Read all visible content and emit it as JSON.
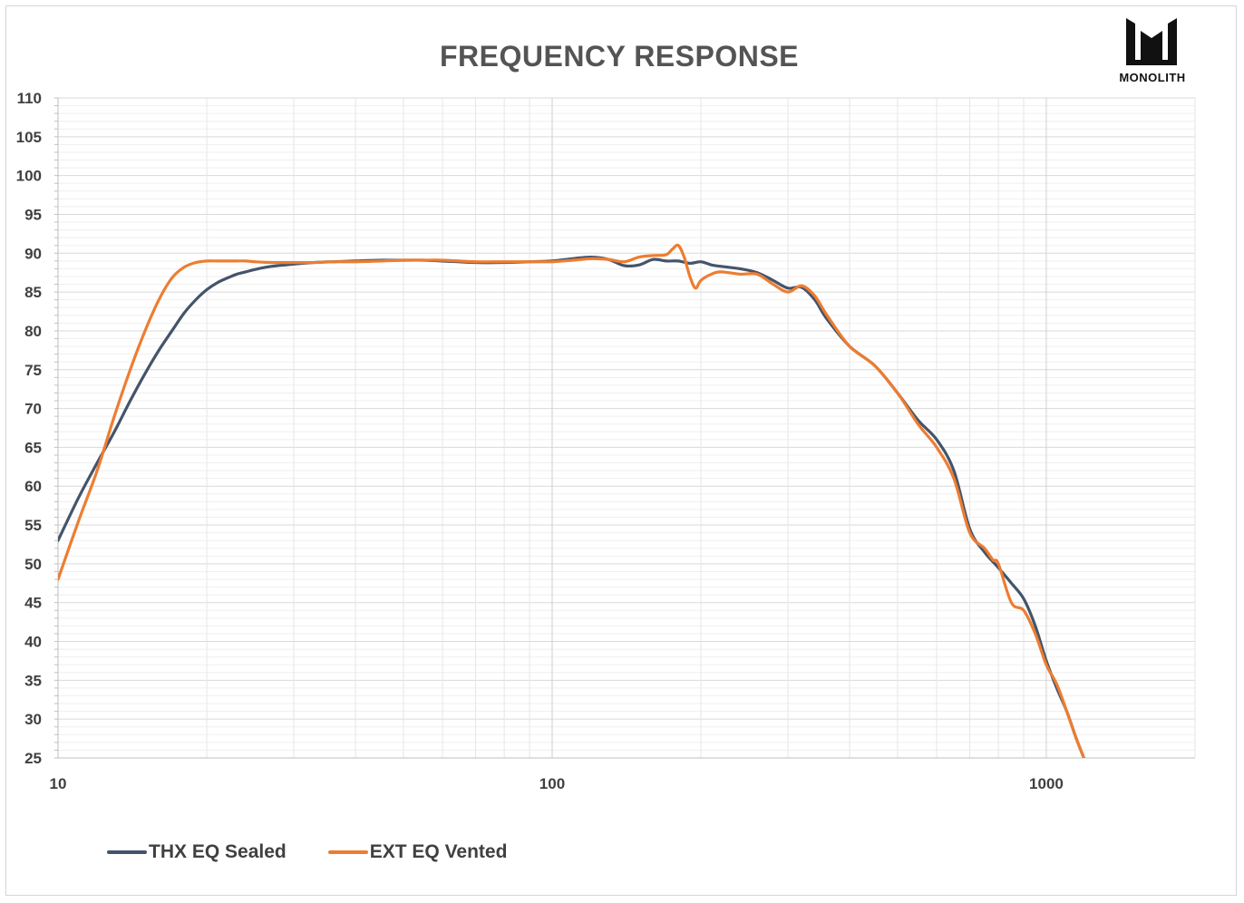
{
  "chart_data": {
    "type": "line",
    "title": "FREQUENCY RESPONSE",
    "xlabel": "",
    "ylabel": "",
    "xscale": "log",
    "xlim": [
      10,
      2000
    ],
    "ylim": [
      25,
      110
    ],
    "xticks": [
      10,
      100,
      1000
    ],
    "xtick_labels": [
      "10",
      "100",
      "1000"
    ],
    "yticks": [
      25,
      30,
      35,
      40,
      45,
      50,
      55,
      60,
      65,
      70,
      75,
      80,
      85,
      90,
      95,
      100,
      105,
      110
    ],
    "ytick_labels": [
      "25",
      "30",
      "35",
      "40",
      "45",
      "50",
      "55",
      "60",
      "65",
      "70",
      "75",
      "80",
      "85",
      "90",
      "95",
      "100",
      "105",
      "110"
    ],
    "grid": true,
    "legend_position": "bottom-left",
    "series": [
      {
        "name": "THX EQ Sealed",
        "color": "#44546a",
        "x": [
          10,
          11,
          12,
          13,
          14,
          15,
          16,
          17,
          18,
          19,
          20,
          21,
          22,
          23,
          24,
          25,
          27,
          30,
          33,
          36,
          40,
          45,
          50,
          55,
          60,
          70,
          80,
          90,
          100,
          110,
          120,
          130,
          140,
          150,
          160,
          170,
          180,
          190,
          200,
          210,
          220,
          240,
          260,
          280,
          300,
          320,
          340,
          360,
          400,
          450,
          500,
          550,
          600,
          650,
          700,
          750,
          800,
          850,
          900,
          950,
          1000,
          1050,
          1100,
          1150,
          1200
        ],
        "y": [
          53,
          58.5,
          63,
          67,
          71,
          74.5,
          77.5,
          80,
          82.3,
          84,
          85.3,
          86.2,
          86.8,
          87.3,
          87.6,
          87.9,
          88.3,
          88.6,
          88.8,
          88.9,
          89,
          89.1,
          89.1,
          89.1,
          89,
          88.8,
          88.8,
          88.9,
          89,
          89.3,
          89.5,
          89.2,
          88.4,
          88.5,
          89.2,
          89,
          89,
          88.7,
          88.9,
          88.5,
          88.3,
          88,
          87.5,
          86.5,
          85.5,
          85.6,
          84,
          81.5,
          78,
          75.5,
          72,
          68.5,
          66,
          62,
          54.5,
          51.5,
          49.5,
          47.5,
          45.5,
          42,
          37.5,
          34,
          31,
          27.5,
          24.5
        ]
      },
      {
        "name": "EXT EQ Vented",
        "color": "#ed7d31",
        "x": [
          10,
          11,
          12,
          13,
          14,
          15,
          16,
          17,
          18,
          19,
          20,
          21,
          22,
          23,
          24,
          25,
          27,
          30,
          33,
          36,
          40,
          45,
          50,
          55,
          60,
          70,
          80,
          90,
          100,
          110,
          120,
          130,
          140,
          150,
          160,
          170,
          175,
          180,
          185,
          190,
          195,
          200,
          210,
          220,
          240,
          260,
          280,
          300,
          320,
          340,
          360,
          400,
          450,
          500,
          550,
          600,
          650,
          700,
          750,
          780,
          800,
          850,
          900,
          950,
          1000,
          1050,
          1100,
          1150,
          1200
        ],
        "y": [
          48,
          55.5,
          62,
          69,
          75,
          80,
          84,
          86.8,
          88.2,
          88.8,
          89,
          89,
          89,
          89,
          89,
          88.9,
          88.8,
          88.8,
          88.8,
          88.9,
          88.9,
          89,
          89.1,
          89.1,
          89.1,
          88.9,
          88.9,
          88.9,
          88.9,
          89.1,
          89.3,
          89.2,
          88.9,
          89.5,
          89.7,
          89.8,
          90.5,
          91,
          89.5,
          87,
          85.5,
          86.5,
          87.3,
          87.6,
          87.3,
          87.3,
          86,
          85,
          85.8,
          84.5,
          82,
          78,
          75.5,
          72,
          68,
          65,
          61,
          54,
          52,
          50.5,
          50,
          45,
          44,
          41,
          37,
          34.5,
          31,
          27.5,
          24.5
        ]
      }
    ]
  },
  "logo": {
    "icon": "monolith-logo-icon",
    "text": "MONOLITH"
  }
}
